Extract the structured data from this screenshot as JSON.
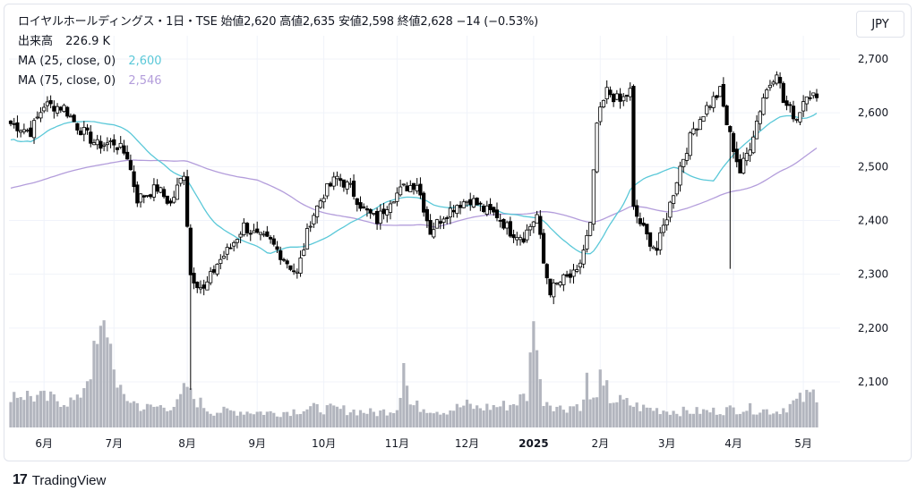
{
  "header": {
    "title_line": "ロイヤルホールディングス・1日・TSE 始値2,620 高値2,635 安値2,598 終値2,628 −14 (−0.53%)",
    "volume_label": "出来高",
    "volume_value": "226.9 K",
    "ma25_label": "MA (25, close, 0)",
    "ma25_value": "2,600",
    "ma75_label": "MA (75, close, 0)",
    "ma75_value": "2,546"
  },
  "currency": "JPY",
  "branding": {
    "logo": "17",
    "name": "TradingView"
  },
  "colors": {
    "ma25": "#5ac8d8",
    "ma75": "#b39ddb",
    "volume": "#b2b5be",
    "candle": "#000000",
    "grid": "#f0f3fa"
  },
  "chart_data": {
    "type": "candlestick",
    "title": "ロイヤルホールディングス・1日・TSE",
    "ylabel": "JPY",
    "ylim": [
      2080,
      2730
    ],
    "y_ticks": [
      "2,700",
      "2,600",
      "2,500",
      "2,400",
      "2,300",
      "2,200",
      "2,100"
    ],
    "y_tick_values": [
      2700,
      2600,
      2500,
      2400,
      2300,
      2200,
      2100
    ],
    "x_ticks": [
      {
        "label": "6月",
        "index": 10,
        "bold": false
      },
      {
        "label": "7月",
        "index": 31,
        "bold": false
      },
      {
        "label": "8月",
        "index": 53,
        "bold": false
      },
      {
        "label": "9月",
        "index": 74,
        "bold": false
      },
      {
        "label": "10月",
        "index": 94,
        "bold": false
      },
      {
        "label": "11月",
        "index": 116,
        "bold": false
      },
      {
        "label": "12月",
        "index": 137,
        "bold": false
      },
      {
        "label": "2025",
        "index": 157,
        "bold": true
      },
      {
        "label": "2月",
        "index": 177,
        "bold": false
      },
      {
        "label": "3月",
        "index": 197,
        "bold": false
      },
      {
        "label": "4月",
        "index": 217,
        "bold": false
      },
      {
        "label": "5月",
        "index": 238,
        "bold": false
      }
    ],
    "close_anchors": [
      [
        0,
        2580
      ],
      [
        6,
        2565
      ],
      [
        10,
        2615
      ],
      [
        16,
        2610
      ],
      [
        20,
        2575
      ],
      [
        26,
        2540
      ],
      [
        31,
        2545
      ],
      [
        35,
        2520
      ],
      [
        38,
        2440
      ],
      [
        44,
        2460
      ],
      [
        48,
        2430
      ],
      [
        52,
        2490
      ],
      [
        54,
        2300
      ],
      [
        58,
        2270
      ],
      [
        62,
        2320
      ],
      [
        66,
        2350
      ],
      [
        70,
        2390
      ],
      [
        74,
        2370
      ],
      [
        78,
        2360
      ],
      [
        82,
        2330
      ],
      [
        86,
        2300
      ],
      [
        90,
        2400
      ],
      [
        94,
        2450
      ],
      [
        98,
        2480
      ],
      [
        102,
        2460
      ],
      [
        106,
        2420
      ],
      [
        110,
        2400
      ],
      [
        114,
        2440
      ],
      [
        118,
        2460
      ],
      [
        122,
        2470
      ],
      [
        126,
        2380
      ],
      [
        130,
        2410
      ],
      [
        134,
        2430
      ],
      [
        138,
        2440
      ],
      [
        142,
        2420
      ],
      [
        146,
        2410
      ],
      [
        150,
        2380
      ],
      [
        154,
        2370
      ],
      [
        158,
        2410
      ],
      [
        160,
        2320
      ],
      [
        162,
        2270
      ],
      [
        166,
        2290
      ],
      [
        170,
        2300
      ],
      [
        174,
        2390
      ],
      [
        176,
        2580
      ],
      [
        179,
        2640
      ],
      [
        183,
        2620
      ],
      [
        186,
        2640
      ],
      [
        187,
        2420
      ],
      [
        191,
        2370
      ],
      [
        194,
        2345
      ],
      [
        198,
        2430
      ],
      [
        201,
        2500
      ],
      [
        205,
        2570
      ],
      [
        209,
        2610
      ],
      [
        213,
        2640
      ],
      [
        215,
        2580
      ],
      [
        219,
        2490
      ],
      [
        222,
        2540
      ],
      [
        226,
        2630
      ],
      [
        230,
        2680
      ],
      [
        232,
        2620
      ],
      [
        236,
        2590
      ],
      [
        239,
        2640
      ],
      [
        242,
        2628
      ]
    ],
    "volume_anchors": [
      [
        0,
        22
      ],
      [
        10,
        18
      ],
      [
        20,
        16
      ],
      [
        30,
        70
      ],
      [
        32,
        22
      ],
      [
        40,
        12
      ],
      [
        50,
        14
      ],
      [
        53,
        26
      ],
      [
        54,
        20
      ],
      [
        60,
        10
      ],
      [
        70,
        10
      ],
      [
        80,
        9
      ],
      [
        90,
        12
      ],
      [
        100,
        11
      ],
      [
        110,
        9
      ],
      [
        116,
        12
      ],
      [
        118,
        38
      ],
      [
        120,
        14
      ],
      [
        130,
        10
      ],
      [
        137,
        14
      ],
      [
        140,
        12
      ],
      [
        150,
        14
      ],
      [
        155,
        20
      ],
      [
        157,
        62
      ],
      [
        158,
        36
      ],
      [
        160,
        18
      ],
      [
        165,
        12
      ],
      [
        175,
        16
      ],
      [
        177,
        34
      ],
      [
        180,
        18
      ],
      [
        190,
        12
      ],
      [
        200,
        10
      ],
      [
        210,
        10
      ],
      [
        220,
        12
      ],
      [
        230,
        10
      ],
      [
        236,
        16
      ],
      [
        240,
        20
      ],
      [
        242,
        22
      ]
    ],
    "volume_spikes": [
      [
        30,
        52
      ],
      [
        31,
        36
      ],
      [
        118,
        40
      ],
      [
        157,
        66
      ],
      [
        158,
        48
      ],
      [
        159,
        30
      ],
      [
        177,
        36
      ],
      [
        178,
        26
      ],
      [
        173,
        34
      ]
    ],
    "ma_note_hidden": ""
  }
}
